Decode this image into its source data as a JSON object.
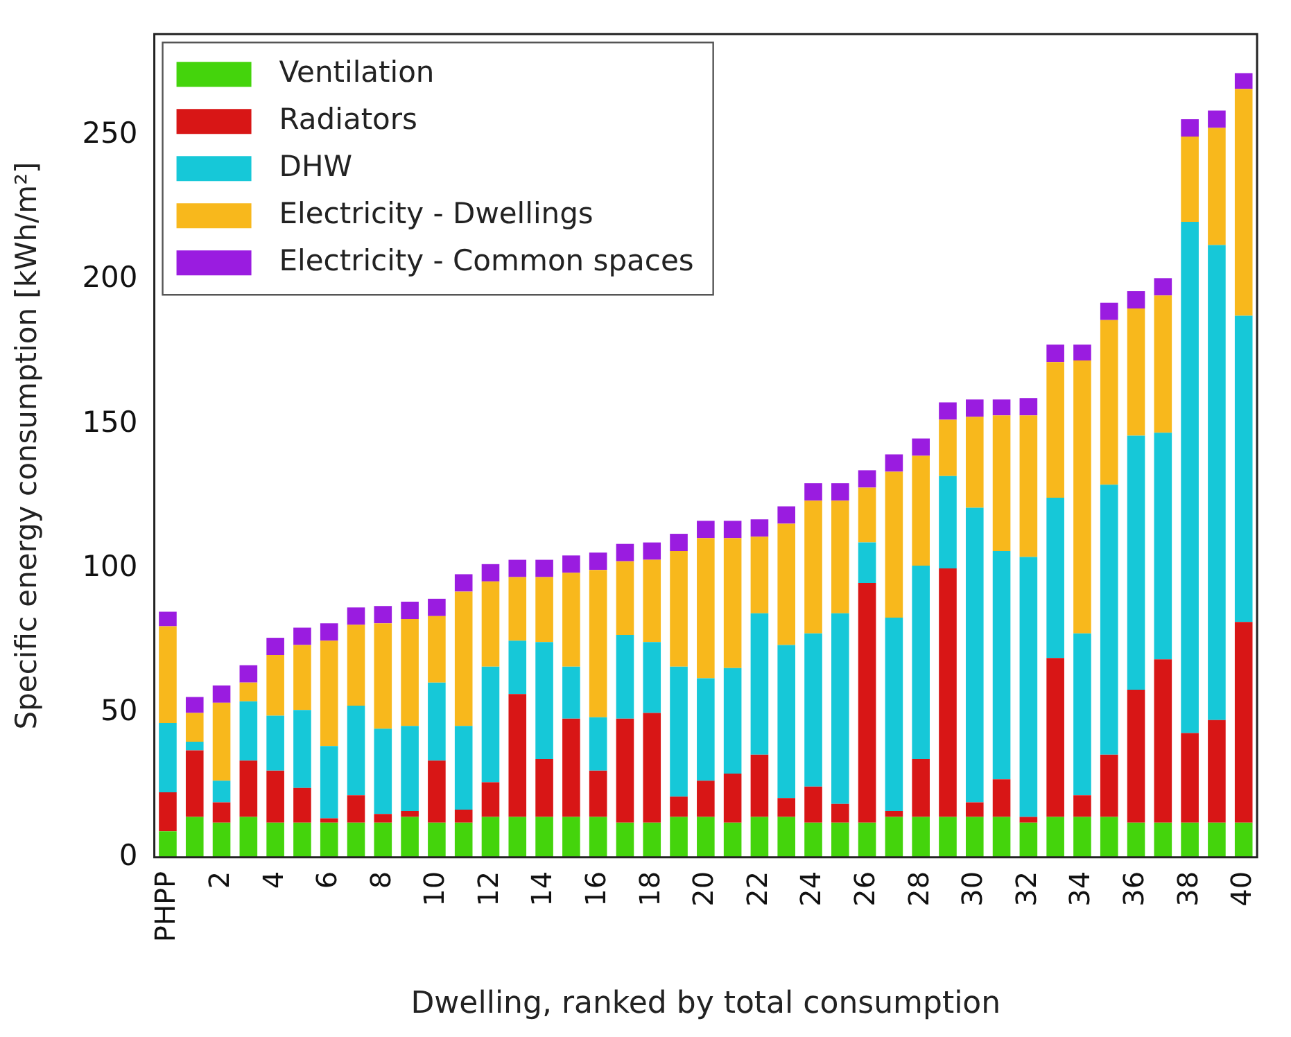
{
  "chart_data": {
    "type": "bar",
    "stacked": true,
    "xlabel": "Dwelling, ranked by total consumption",
    "ylabel": "Specific energy consumption [kWh/m²]",
    "categories": [
      "PHPP",
      null,
      "2",
      null,
      "4",
      null,
      "6",
      null,
      "8",
      null,
      "10",
      null,
      "12",
      null,
      "14",
      null,
      "16",
      null,
      "18",
      null,
      "20",
      null,
      "22",
      null,
      "24",
      null,
      "26",
      null,
      "28",
      null,
      "30",
      null,
      "32",
      null,
      "34",
      null,
      "36",
      null,
      "38",
      null,
      "40"
    ],
    "series": [
      {
        "name": "Ventilation",
        "color": "#44d40c",
        "values": [
          9,
          14,
          12,
          14,
          12,
          12,
          12,
          12,
          12,
          14,
          12,
          12,
          14,
          14,
          14,
          14,
          14,
          12,
          12,
          14,
          14,
          12,
          14,
          14,
          12,
          12,
          12,
          14,
          14,
          14,
          14,
          14,
          12,
          14,
          14,
          14,
          12,
          12,
          12,
          12,
          12
        ]
      },
      {
        "name": "Radiators",
        "color": "#d81616",
        "values": [
          13.5,
          23,
          7,
          19.5,
          18,
          12,
          1.5,
          9.5,
          3,
          2,
          21.5,
          4.5,
          12,
          42.5,
          20,
          34,
          16,
          36,
          38,
          7,
          12.5,
          17,
          21.5,
          6.5,
          12.5,
          6.5,
          83,
          2,
          20,
          86,
          5,
          13,
          2,
          55,
          7.5,
          21.5,
          46,
          56.5,
          31,
          35.5,
          69.5
        ]
      },
      {
        "name": "DHW",
        "color": "#16c8d8",
        "values": [
          24,
          3,
          7.5,
          20.5,
          19,
          27,
          25,
          31,
          29.5,
          29.5,
          27,
          29,
          40,
          18.5,
          40.5,
          18,
          18.5,
          29,
          24.5,
          45,
          35.5,
          36.5,
          49,
          53,
          53,
          66,
          14,
          67,
          67,
          32,
          102,
          79,
          90,
          55.5,
          56,
          93.5,
          88,
          78.5,
          177,
          164.5,
          106
        ]
      },
      {
        "name": "Electricity - Dwellings",
        "color": "#f8b81c",
        "values": [
          33.5,
          10,
          27,
          6.5,
          21,
          22.5,
          36.5,
          28,
          36.5,
          37,
          23,
          46.5,
          29.5,
          22,
          22.5,
          32.5,
          51,
          25.5,
          28.5,
          40,
          48.5,
          45,
          26.5,
          42,
          46,
          39,
          19,
          50.5,
          38,
          19.5,
          31.5,
          47,
          49,
          47,
          94.5,
          57,
          44,
          47.5,
          29.5,
          40.5,
          78.5
        ]
      },
      {
        "name": "Electricity - Common spaces",
        "color": "#9a1ce0",
        "values": [
          5,
          5.5,
          6,
          6,
          6,
          6,
          6,
          6,
          6,
          6,
          6,
          6,
          6,
          6,
          6,
          6,
          6,
          6,
          6,
          6,
          6,
          6,
          6,
          6,
          6,
          6,
          6,
          6,
          6,
          6,
          6,
          5.5,
          6,
          6,
          5.5,
          6,
          6,
          6,
          6,
          6,
          5.5
        ]
      }
    ],
    "ylim": [
      0,
      285
    ],
    "yticks": [
      0,
      50,
      100,
      150,
      200,
      250
    ],
    "grid": false,
    "legend": "top left"
  }
}
